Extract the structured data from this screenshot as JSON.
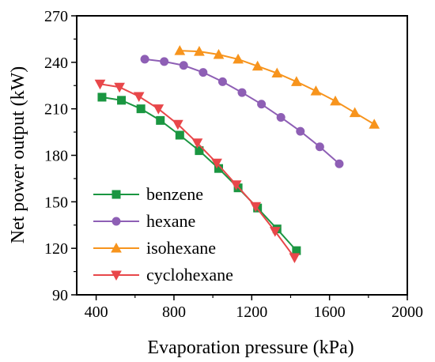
{
  "chart_data": {
    "type": "line",
    "title": "",
    "xlabel": "Evaporation pressure (kPa)",
    "ylabel": "Net power output (kW)",
    "xlim": [
      300,
      2000
    ],
    "ylim": [
      90,
      270
    ],
    "xticks": [
      400,
      800,
      1200,
      1600,
      2000
    ],
    "xtick_labels": [
      "400",
      "800",
      "1200",
      "1600",
      "2000"
    ],
    "yticks": [
      90,
      120,
      150,
      180,
      210,
      240,
      270
    ],
    "ytick_labels": [
      "90",
      "120",
      "150",
      "180",
      "210",
      "240",
      "270"
    ],
    "grid": false,
    "legend_position": "bottom-left",
    "series": [
      {
        "name": "benzene",
        "color": "#1a9641",
        "marker": "square",
        "x": [
          430,
          530,
          630,
          730,
          830,
          930,
          1030,
          1130,
          1230,
          1330,
          1430
        ],
        "y": [
          217.5,
          215.5,
          210.0,
          202.5,
          193.0,
          183.0,
          171.5,
          159.0,
          146.0,
          132.5,
          118.5
        ]
      },
      {
        "name": "hexane",
        "color": "#8e5fb5",
        "marker": "circle",
        "x": [
          650,
          750,
          850,
          950,
          1050,
          1150,
          1250,
          1350,
          1450,
          1550,
          1650
        ],
        "y": [
          242.0,
          240.5,
          238.0,
          233.5,
          227.5,
          220.5,
          213.0,
          204.5,
          195.5,
          185.5,
          174.5
        ]
      },
      {
        "name": "isohexane",
        "color": "#f7941d",
        "marker": "triangle-up",
        "x": [
          830,
          930,
          1030,
          1130,
          1230,
          1330,
          1430,
          1530,
          1630,
          1730,
          1830
        ],
        "y": [
          247.5,
          247.0,
          245.0,
          242.0,
          237.5,
          233.0,
          227.5,
          221.5,
          215.0,
          207.5,
          200.0
        ]
      },
      {
        "name": "cyclohexane",
        "color": "#e8474a",
        "marker": "triangle-down",
        "x": [
          420,
          520,
          620,
          720,
          820,
          920,
          1020,
          1120,
          1220,
          1320,
          1420
        ],
        "y": [
          226.0,
          224.0,
          218.0,
          210.0,
          200.0,
          188.0,
          175.0,
          161.0,
          147.0,
          131.0,
          114.0
        ]
      }
    ]
  }
}
